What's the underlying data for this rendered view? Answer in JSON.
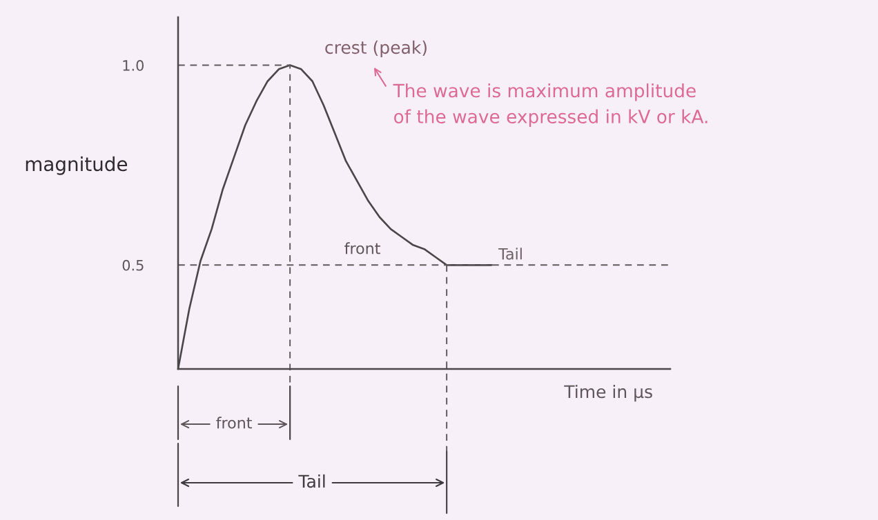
{
  "chart_data": {
    "type": "line",
    "xlabel": "Time in μs",
    "ylabel": "magnitude",
    "annotations": [
      "crest (peak)",
      "The wave is maximum amplitude\nof the wave expressed in kV or kA.",
      "front",
      "Tail",
      "front",
      "Tail"
    ],
    "categories": [
      null,
      null,
      null,
      null,
      null,
      null,
      null,
      null,
      null,
      null,
      null,
      null,
      null,
      null,
      null,
      null,
      null,
      null,
      null,
      null,
      null,
      null,
      null,
      null,
      null,
      null,
      null,
      null,
      null
    ],
    "series": [
      {
        "color": "#4b4649",
        "values": [
          0.24,
          0.39,
          0.51,
          0.59,
          0.69,
          0.77,
          0.85,
          0.91,
          0.96,
          0.99,
          1.0,
          0.99,
          0.96,
          0.9,
          0.83,
          0.76,
          0.71,
          0.66,
          0.62,
          0.59,
          0.57,
          0.55,
          0.54,
          0.52,
          0.5,
          0.5,
          0.5,
          0.5,
          0.5
        ]
      }
    ],
    "ylim": [
      0.24,
      1.12
    ],
    "yticks": [
      0.5,
      {
        "value": 1,
        "label": "1.0"
      }
    ],
    "tick_labels": "y",
    "ref_lines": [
      {
        "axis": "y",
        "value": 1,
        "color": "#5f585c",
        "line_style": "dashed"
      },
      {
        "axis": "y",
        "value": 0.5,
        "color": "#5f585c",
        "line_style": "dashed"
      }
    ],
    "grid": false,
    "marker": "none",
    "line_style": "solid"
  }
}
